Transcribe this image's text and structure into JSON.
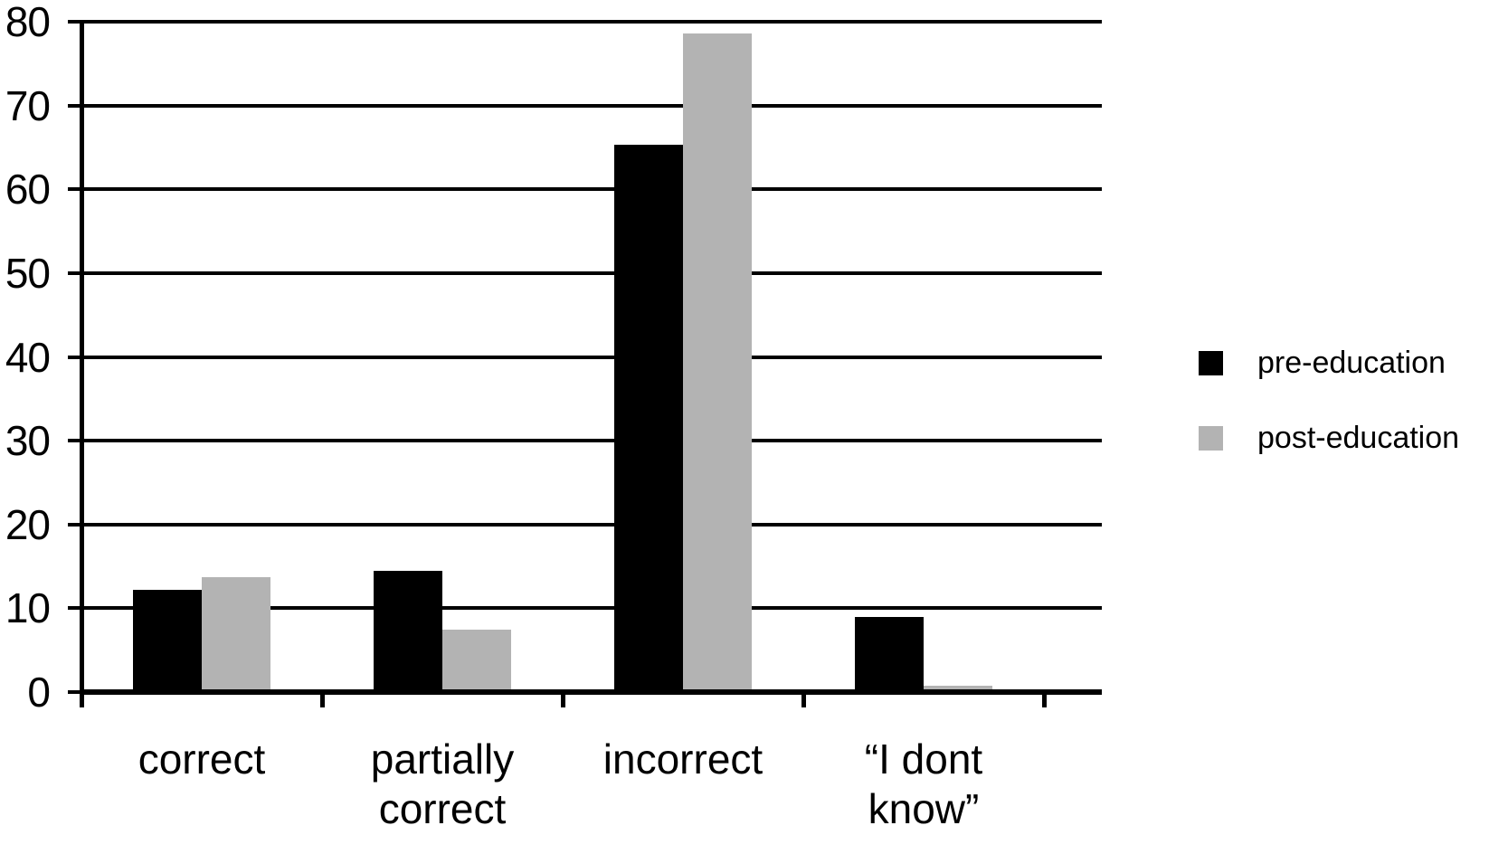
{
  "chart_data": {
    "type": "bar",
    "title": "",
    "xlabel": "",
    "ylabel": "",
    "categories": [
      "correct",
      "partially correct",
      "incorrect",
      "“I dont know”"
    ],
    "categories_display": [
      "correct",
      "partially\ncorrect",
      "incorrect",
      "“I dont\nknow”"
    ],
    "series": [
      {
        "name": "pre-education",
        "color": "#000000",
        "values": [
          12.2,
          14.5,
          65.3,
          9.0
        ]
      },
      {
        "name": "post-education",
        "color": "#b3b3b3",
        "values": [
          13.7,
          7.5,
          78.6,
          0.8
        ]
      }
    ],
    "ylim": [
      0,
      80
    ],
    "yticks": [
      0,
      10,
      20,
      30,
      40,
      50,
      60,
      70,
      80
    ],
    "grid": "horizontal",
    "legend_position": "right-middle",
    "background_color": "#ffffff",
    "axis_color": "#000000"
  }
}
